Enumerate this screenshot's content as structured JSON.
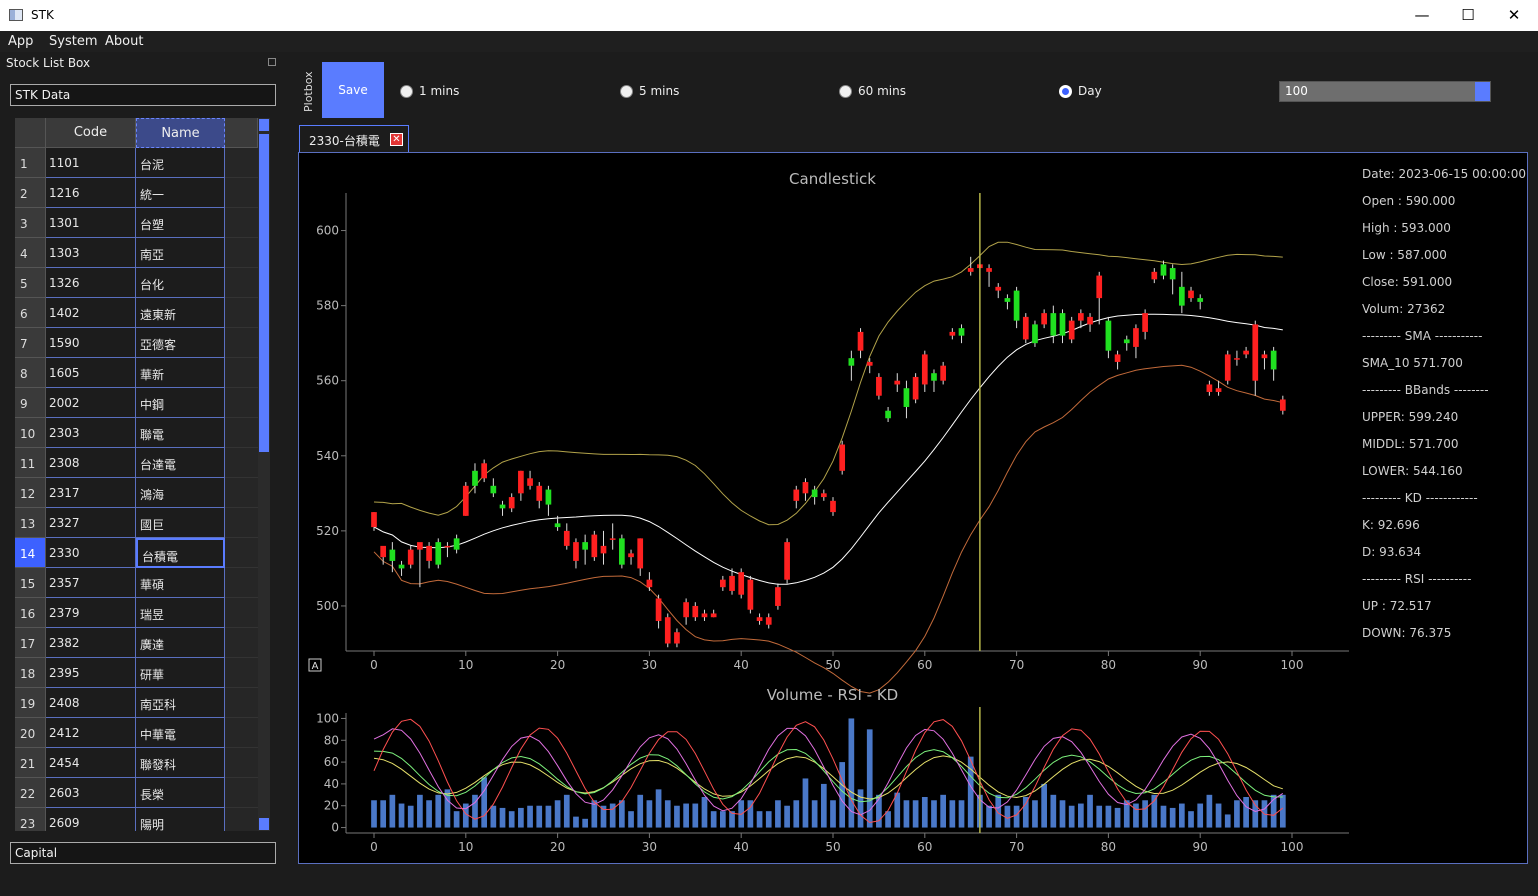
{
  "window": {
    "title": "STK"
  },
  "menu": [
    "App",
    "System",
    "About"
  ],
  "dock": {
    "title": "Stock List Box",
    "filter_value": "STK Data",
    "bottom_value": "Capital",
    "columns": [
      "Code",
      "Name"
    ],
    "selected_row": 14,
    "rows": [
      {
        "n": "1",
        "code": "1101",
        "name": "台泥"
      },
      {
        "n": "2",
        "code": "1216",
        "name": "統一"
      },
      {
        "n": "3",
        "code": "1301",
        "name": "台塑"
      },
      {
        "n": "4",
        "code": "1303",
        "name": "南亞"
      },
      {
        "n": "5",
        "code": "1326",
        "name": "台化"
      },
      {
        "n": "6",
        "code": "1402",
        "name": "遠東新"
      },
      {
        "n": "7",
        "code": "1590",
        "name": "亞德客"
      },
      {
        "n": "8",
        "code": "1605",
        "name": "華新"
      },
      {
        "n": "9",
        "code": "2002",
        "name": "中鋼"
      },
      {
        "n": "10",
        "code": "2303",
        "name": "聯電"
      },
      {
        "n": "11",
        "code": "2308",
        "name": "台達電"
      },
      {
        "n": "12",
        "code": "2317",
        "name": "鴻海"
      },
      {
        "n": "13",
        "code": "2327",
        "name": "國巨"
      },
      {
        "n": "14",
        "code": "2330",
        "name": "台積電"
      },
      {
        "n": "15",
        "code": "2357",
        "name": "華碩"
      },
      {
        "n": "16",
        "code": "2379",
        "name": "瑞昱"
      },
      {
        "n": "17",
        "code": "2382",
        "name": "廣達"
      },
      {
        "n": "18",
        "code": "2395",
        "name": "研華"
      },
      {
        "n": "19",
        "code": "2408",
        "name": "南亞科"
      },
      {
        "n": "20",
        "code": "2412",
        "name": "中華電"
      },
      {
        "n": "21",
        "code": "2454",
        "name": "聯發科"
      },
      {
        "n": "22",
        "code": "2603",
        "name": "長榮"
      },
      {
        "n": "23",
        "code": "2609",
        "name": "陽明"
      }
    ]
  },
  "toolbar": {
    "group_label": "Plotbox",
    "save_label": "Save",
    "intervals": [
      {
        "label": "1 mins",
        "checked": false
      },
      {
        "label": "5 mins",
        "checked": false
      },
      {
        "label": "60 mins",
        "checked": false
      },
      {
        "label": "Day",
        "checked": true
      }
    ],
    "count_value": "100"
  },
  "tab": {
    "label": "2330-台積電"
  },
  "info": [
    "Date: 2023-06-15 00:00:00",
    "Open : 590.000",
    "High : 593.000",
    "Low : 587.000",
    "Close: 591.000",
    "Volum: 27362",
    "--------- SMA -----------",
    "SMA_10 571.700",
    "--------- BBands --------",
    "UPPER: 599.240",
    "MIDDL: 571.700",
    "LOWER: 544.160",
    "--------- KD ------------",
    "K: 92.696",
    "D: 93.634",
    "--------- RSI ----------",
    "UP : 72.517",
    "DOWN: 76.375"
  ],
  "colors": {
    "accent": "#5a7cff",
    "up": "#ff2020",
    "down": "#20e020",
    "volume": "#4a78c8",
    "cursor": "#b6b64a"
  },
  "chart_data": [
    {
      "type": "candlestick",
      "title": "Candlestick",
      "xlim": [
        0,
        100
      ],
      "ylim": [
        488,
        610
      ],
      "xticks": [
        0,
        10,
        20,
        30,
        40,
        50,
        60,
        70,
        80,
        90,
        100
      ],
      "yticks": [
        500,
        520,
        540,
        560,
        580,
        600
      ],
      "cursor_x": 66,
      "candles": [
        [
          0,
          521,
          525,
          520,
          525
        ],
        [
          1,
          513,
          516,
          511,
          515
        ],
        [
          2,
          515,
          512,
          509,
          517
        ],
        [
          3,
          511,
          510,
          508,
          512
        ],
        [
          4,
          511,
          515,
          510,
          516
        ],
        [
          5,
          515,
          517,
          505,
          516
        ],
        [
          6,
          512,
          516,
          510,
          517
        ],
        [
          7,
          517,
          511,
          510,
          518
        ],
        [
          8,
          516,
          516,
          513,
          517
        ],
        [
          9,
          518,
          515,
          514,
          519
        ],
        [
          10,
          524,
          532,
          524,
          533
        ],
        [
          11,
          536,
          532,
          530,
          538
        ],
        [
          12,
          534,
          538,
          533,
          539
        ],
        [
          13,
          532,
          530,
          529,
          534
        ],
        [
          14,
          527,
          526,
          524,
          528
        ],
        [
          15,
          526,
          529,
          525,
          530
        ],
        [
          16,
          530,
          536,
          528,
          536
        ],
        [
          17,
          532,
          534,
          531,
          536
        ],
        [
          18,
          528,
          532,
          526,
          533
        ],
        [
          19,
          531,
          527,
          524,
          532
        ],
        [
          20,
          522,
          521,
          520,
          524
        ],
        [
          21,
          516,
          520,
          515,
          522
        ],
        [
          22,
          512,
          517,
          510,
          518
        ],
        [
          23,
          517,
          515,
          511,
          519
        ],
        [
          24,
          513,
          519,
          512,
          520
        ],
        [
          25,
          514,
          516,
          511,
          520
        ],
        [
          26,
          518,
          518,
          515,
          522
        ],
        [
          27,
          518,
          511,
          510,
          519
        ],
        [
          28,
          513,
          514,
          511,
          515
        ],
        [
          29,
          510,
          518,
          508,
          518
        ],
        [
          30,
          505,
          507,
          504,
          509
        ],
        [
          31,
          496,
          502,
          494,
          503
        ],
        [
          32,
          490,
          497,
          489,
          498
        ],
        [
          33,
          490,
          493,
          489,
          494
        ],
        [
          34,
          497,
          501,
          495,
          502
        ],
        [
          35,
          497,
          500,
          496,
          501
        ],
        [
          36,
          497,
          498,
          496,
          499
        ],
        [
          37,
          497,
          498,
          497,
          499
        ],
        [
          38,
          505,
          507,
          504,
          508
        ],
        [
          39,
          504,
          508,
          503,
          510
        ],
        [
          40,
          503,
          509,
          502,
          510
        ],
        [
          41,
          499,
          507,
          498,
          508
        ],
        [
          42,
          496,
          497,
          495,
          498
        ],
        [
          43,
          495,
          497,
          494,
          498
        ],
        [
          44,
          500,
          505,
          499,
          506
        ],
        [
          45,
          507,
          517,
          506,
          518
        ],
        [
          46,
          528,
          531,
          526,
          532
        ],
        [
          47,
          530,
          533,
          528,
          534
        ],
        [
          48,
          531,
          529,
          527,
          532
        ],
        [
          49,
          529,
          530,
          528,
          531
        ],
        [
          50,
          525,
          528,
          524,
          529
        ],
        [
          51,
          536,
          543,
          535,
          544
        ],
        [
          52,
          566,
          564,
          560,
          568
        ],
        [
          53,
          568,
          573,
          566,
          574
        ],
        [
          54,
          564,
          565,
          562,
          566
        ],
        [
          55,
          556,
          561,
          555,
          562
        ],
        [
          56,
          552,
          550,
          549,
          553
        ],
        [
          57,
          559,
          560,
          557,
          562
        ],
        [
          58,
          558,
          553,
          550,
          560
        ],
        [
          59,
          555,
          561,
          554,
          562
        ],
        [
          60,
          559,
          567,
          557,
          568
        ],
        [
          61,
          562,
          560,
          557,
          563
        ],
        [
          62,
          560,
          564,
          559,
          565
        ],
        [
          63,
          572,
          573,
          571,
          574
        ],
        [
          64,
          574,
          572,
          570,
          575
        ],
        [
          65,
          589,
          590,
          588,
          593
        ],
        [
          66,
          590,
          591,
          587,
          593
        ],
        [
          67,
          589,
          590,
          585,
          591
        ],
        [
          68,
          584,
          585,
          582,
          586
        ],
        [
          69,
          582,
          581,
          579,
          583
        ],
        [
          70,
          584,
          576,
          574,
          585
        ],
        [
          71,
          571,
          577,
          570,
          578
        ],
        [
          72,
          575,
          570,
          569,
          576
        ],
        [
          73,
          575,
          578,
          574,
          579
        ],
        [
          74,
          578,
          572,
          570,
          580
        ],
        [
          75,
          578,
          572,
          570,
          579
        ],
        [
          76,
          571,
          576,
          570,
          577
        ],
        [
          77,
          576,
          578,
          574,
          579
        ],
        [
          78,
          575,
          577,
          573,
          578
        ],
        [
          79,
          582,
          588,
          575,
          589
        ],
        [
          80,
          576,
          568,
          566,
          577
        ],
        [
          81,
          565,
          567,
          563,
          568
        ],
        [
          82,
          571,
          570,
          568,
          572
        ],
        [
          83,
          569,
          574,
          566,
          575
        ],
        [
          84,
          573,
          578,
          571,
          579
        ],
        [
          85,
          587,
          589,
          586,
          590
        ],
        [
          86,
          591,
          588,
          587,
          592
        ],
        [
          87,
          590,
          587,
          583,
          591
        ],
        [
          88,
          585,
          580,
          578,
          589
        ],
        [
          89,
          582,
          584,
          581,
          585
        ],
        [
          90,
          582,
          581,
          579,
          583
        ],
        [
          91,
          557,
          559,
          556,
          560
        ],
        [
          92,
          557,
          558,
          556,
          560
        ],
        [
          93,
          560,
          567,
          559,
          568
        ],
        [
          94,
          566,
          566,
          564,
          568
        ],
        [
          95,
          567,
          568,
          566,
          569
        ],
        [
          96,
          560,
          575,
          556,
          576
        ],
        [
          97,
          566,
          567,
          563,
          568
        ],
        [
          98,
          568,
          563,
          560,
          569
        ],
        [
          99,
          552,
          555,
          551,
          556
        ]
      ]
    },
    {
      "type": "bar+line",
      "title": "Volume - RSI - KD",
      "xlim": [
        0,
        100
      ],
      "ylim": [
        -5,
        105
      ],
      "xticks": [
        0,
        10,
        20,
        30,
        40,
        50,
        60,
        70,
        80,
        90,
        100
      ],
      "yticks": [
        0,
        20,
        40,
        60,
        80,
        100
      ],
      "cursor_x": 66,
      "volume": [
        25,
        25,
        30,
        22,
        20,
        30,
        25,
        30,
        35,
        15,
        22,
        30,
        46,
        20,
        18,
        15,
        18,
        20,
        20,
        20,
        25,
        30,
        10,
        8,
        25,
        20,
        22,
        25,
        15,
        30,
        25,
        35,
        25,
        20,
        22,
        22,
        28,
        15,
        15,
        15,
        25,
        25,
        15,
        15,
        25,
        20,
        25,
        45,
        25,
        40,
        25,
        60,
        100,
        35,
        90,
        30,
        15,
        32,
        25,
        25,
        28,
        25,
        30,
        25,
        25,
        65,
        30,
        20,
        30,
        20,
        20,
        28,
        25,
        40,
        30,
        25,
        20,
        22,
        30,
        20,
        20,
        18,
        25,
        22,
        25,
        30,
        20,
        18,
        22,
        15,
        22,
        30,
        22,
        12,
        25,
        28,
        25,
        25,
        30,
        30
      ]
    }
  ]
}
